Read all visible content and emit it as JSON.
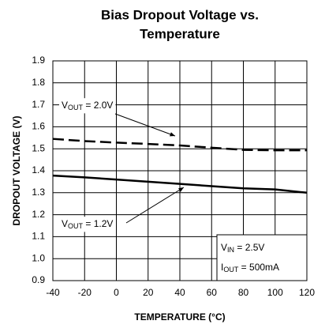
{
  "chart_data": {
    "type": "line",
    "title": [
      "Bias Dropout Voltage vs.",
      "Temperature"
    ],
    "x_label": "TEMPERATURE (°C)",
    "y_label": "DROPOUT VOLTAGE (V)",
    "x": [
      -40,
      -20,
      0,
      20,
      40,
      60,
      80,
      100,
      120
    ],
    "series": [
      {
        "name": [
          "V",
          "OUT",
          " = 2.0V"
        ],
        "color": "#000000",
        "dash": true,
        "values": [
          1.545,
          1.535,
          1.528,
          1.522,
          1.515,
          1.505,
          1.495,
          1.493,
          1.493
        ]
      },
      {
        "name": [
          "V",
          "OUT",
          " = 1.2V"
        ],
        "color": "#000000",
        "dash": false,
        "values": [
          1.378,
          1.37,
          1.36,
          1.35,
          1.34,
          1.33,
          1.32,
          1.315,
          1.3
        ]
      }
    ],
    "conditions": [
      [
        "V",
        "IN",
        " = 2.5V"
      ],
      [
        "I",
        "OUT",
        " = 500mA"
      ]
    ],
    "xlim": [
      -40,
      120
    ],
    "xticks": [
      -40,
      -20,
      0,
      20,
      40,
      60,
      80,
      100,
      120
    ],
    "ylim": [
      0.9,
      1.9
    ],
    "yticks": [
      0.9,
      {
        "value": 1,
        "label": "1.0"
      },
      1.1,
      1.2,
      1.3,
      1.4,
      1.5,
      1.6,
      1.7,
      1.8,
      1.9
    ],
    "grid": true
  }
}
